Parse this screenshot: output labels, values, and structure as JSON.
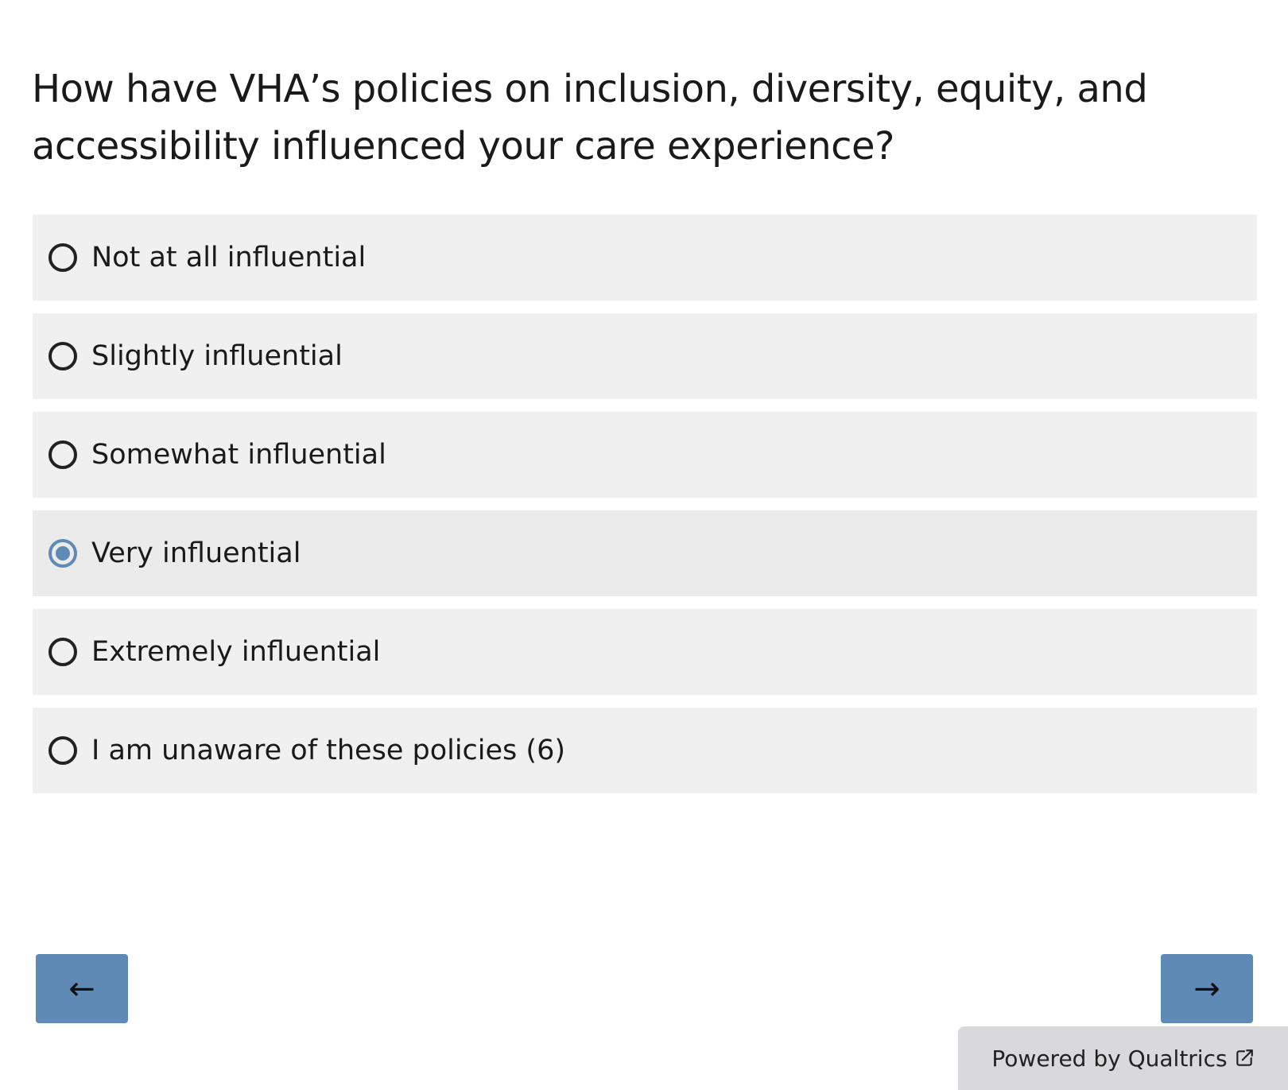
{
  "question": {
    "text": "How have VHA’s policies on inclusion, diversity, equity, and accessibility influenced your care experience?"
  },
  "choices": [
    {
      "label": "Not at all influential",
      "selected": false
    },
    {
      "label": "Slightly influential",
      "selected": false
    },
    {
      "label": "Somewhat influential",
      "selected": false
    },
    {
      "label": "Very influential",
      "selected": true
    },
    {
      "label": "Extremely influential",
      "selected": false
    },
    {
      "label": "I am unaware of these policies (6)",
      "selected": false
    }
  ],
  "navigation": {
    "back_label": "←",
    "next_label": "→"
  },
  "footer": {
    "powered_by": "Powered by Qualtrics",
    "icon": "external-link-icon"
  },
  "colors": {
    "accent": "#5f8ab5",
    "choice_background": "#f0f0f0",
    "footer_background": "#d9d9db"
  }
}
